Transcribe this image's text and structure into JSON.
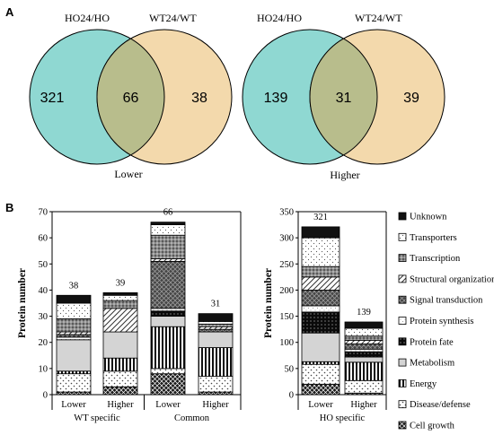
{
  "panels": {
    "a": "A",
    "b": "B"
  },
  "venn": [
    {
      "left_label": "HO24/HO",
      "right_label": "WT24/WT",
      "left_only": "321",
      "overlap": "66",
      "right_only": "38",
      "caption": "Lower"
    },
    {
      "left_label": "HO24/HO",
      "right_label": "WT24/WT",
      "left_only": "139",
      "overlap": "31",
      "right_only": "39",
      "caption": "Higher"
    }
  ],
  "colors": {
    "left": "#8fd8d2",
    "right": "#f3d9ac",
    "overlap": "#b8bd8c"
  },
  "legend": [
    "Unknown",
    "Transporters",
    "Transcription",
    "Structural organization",
    "Signal transduction",
    "Protein synthesis",
    "Protein fate",
    "Metabolism",
    "Energy",
    "Disease/defense",
    "Cell growth"
  ],
  "chart_data": [
    {
      "type": "bar",
      "stacked": true,
      "ylabel": "Protein number",
      "ylim": [
        0,
        70
      ],
      "yticks": [
        0,
        10,
        20,
        30,
        40,
        50,
        60,
        70
      ],
      "categories": [
        "Lower",
        "Higher",
        "Lower",
        "Higher"
      ],
      "groups": [
        {
          "label": "WT specific",
          "categories": [
            0,
            1
          ]
        },
        {
          "label": "Common",
          "categories": [
            2,
            3
          ]
        }
      ],
      "totals": [
        "38",
        "39",
        "66",
        "31"
      ],
      "series": [
        {
          "name": "Cell growth",
          "values": [
            1,
            3,
            8,
            1
          ]
        },
        {
          "name": "Disease/defense",
          "values": [
            7,
            6,
            2,
            6
          ]
        },
        {
          "name": "Energy",
          "values": [
            1,
            5,
            16,
            11
          ]
        },
        {
          "name": "Metabolism",
          "values": [
            12,
            10,
            4,
            6
          ]
        },
        {
          "name": "Protein fate",
          "values": [
            0,
            0,
            2,
            0
          ]
        },
        {
          "name": "Protein synthesis",
          "values": [
            1,
            0,
            1,
            0
          ]
        },
        {
          "name": "Signal transduction",
          "values": [
            1,
            0,
            18,
            1
          ]
        },
        {
          "name": "Structural organization",
          "values": [
            1,
            9,
            1,
            1
          ]
        },
        {
          "name": "Transcription",
          "values": [
            5,
            3,
            9,
            1
          ]
        },
        {
          "name": "Transporters",
          "values": [
            6,
            2,
            4,
            1
          ]
        },
        {
          "name": "Unknown",
          "values": [
            3,
            1,
            1,
            3
          ]
        }
      ]
    },
    {
      "type": "bar",
      "stacked": true,
      "ylabel": "Protein number",
      "ylim": [
        0,
        350
      ],
      "yticks": [
        0,
        50,
        100,
        150,
        200,
        250,
        300,
        350
      ],
      "categories": [
        "Lower",
        "Higher"
      ],
      "groups": [
        {
          "label": "HO specific",
          "categories": [
            0,
            1
          ]
        }
      ],
      "totals": [
        "321",
        "139"
      ],
      "series": [
        {
          "name": "Cell growth",
          "values": [
            20,
            3
          ]
        },
        {
          "name": "Disease/defense",
          "values": [
            38,
            24
          ]
        },
        {
          "name": "Energy",
          "values": [
            5,
            35
          ]
        },
        {
          "name": "Metabolism",
          "values": [
            55,
            10
          ]
        },
        {
          "name": "Protein fate",
          "values": [
            40,
            10
          ]
        },
        {
          "name": "Protein synthesis",
          "values": [
            12,
            5
          ]
        },
        {
          "name": "Signal transduction",
          "values": [
            30,
            10
          ]
        },
        {
          "name": "Structural organization",
          "values": [
            25,
            7
          ]
        },
        {
          "name": "Transcription",
          "values": [
            20,
            8
          ]
        },
        {
          "name": "Transporters",
          "values": [
            55,
            15
          ]
        },
        {
          "name": "Unknown",
          "values": [
            21,
            12
          ]
        }
      ]
    }
  ]
}
